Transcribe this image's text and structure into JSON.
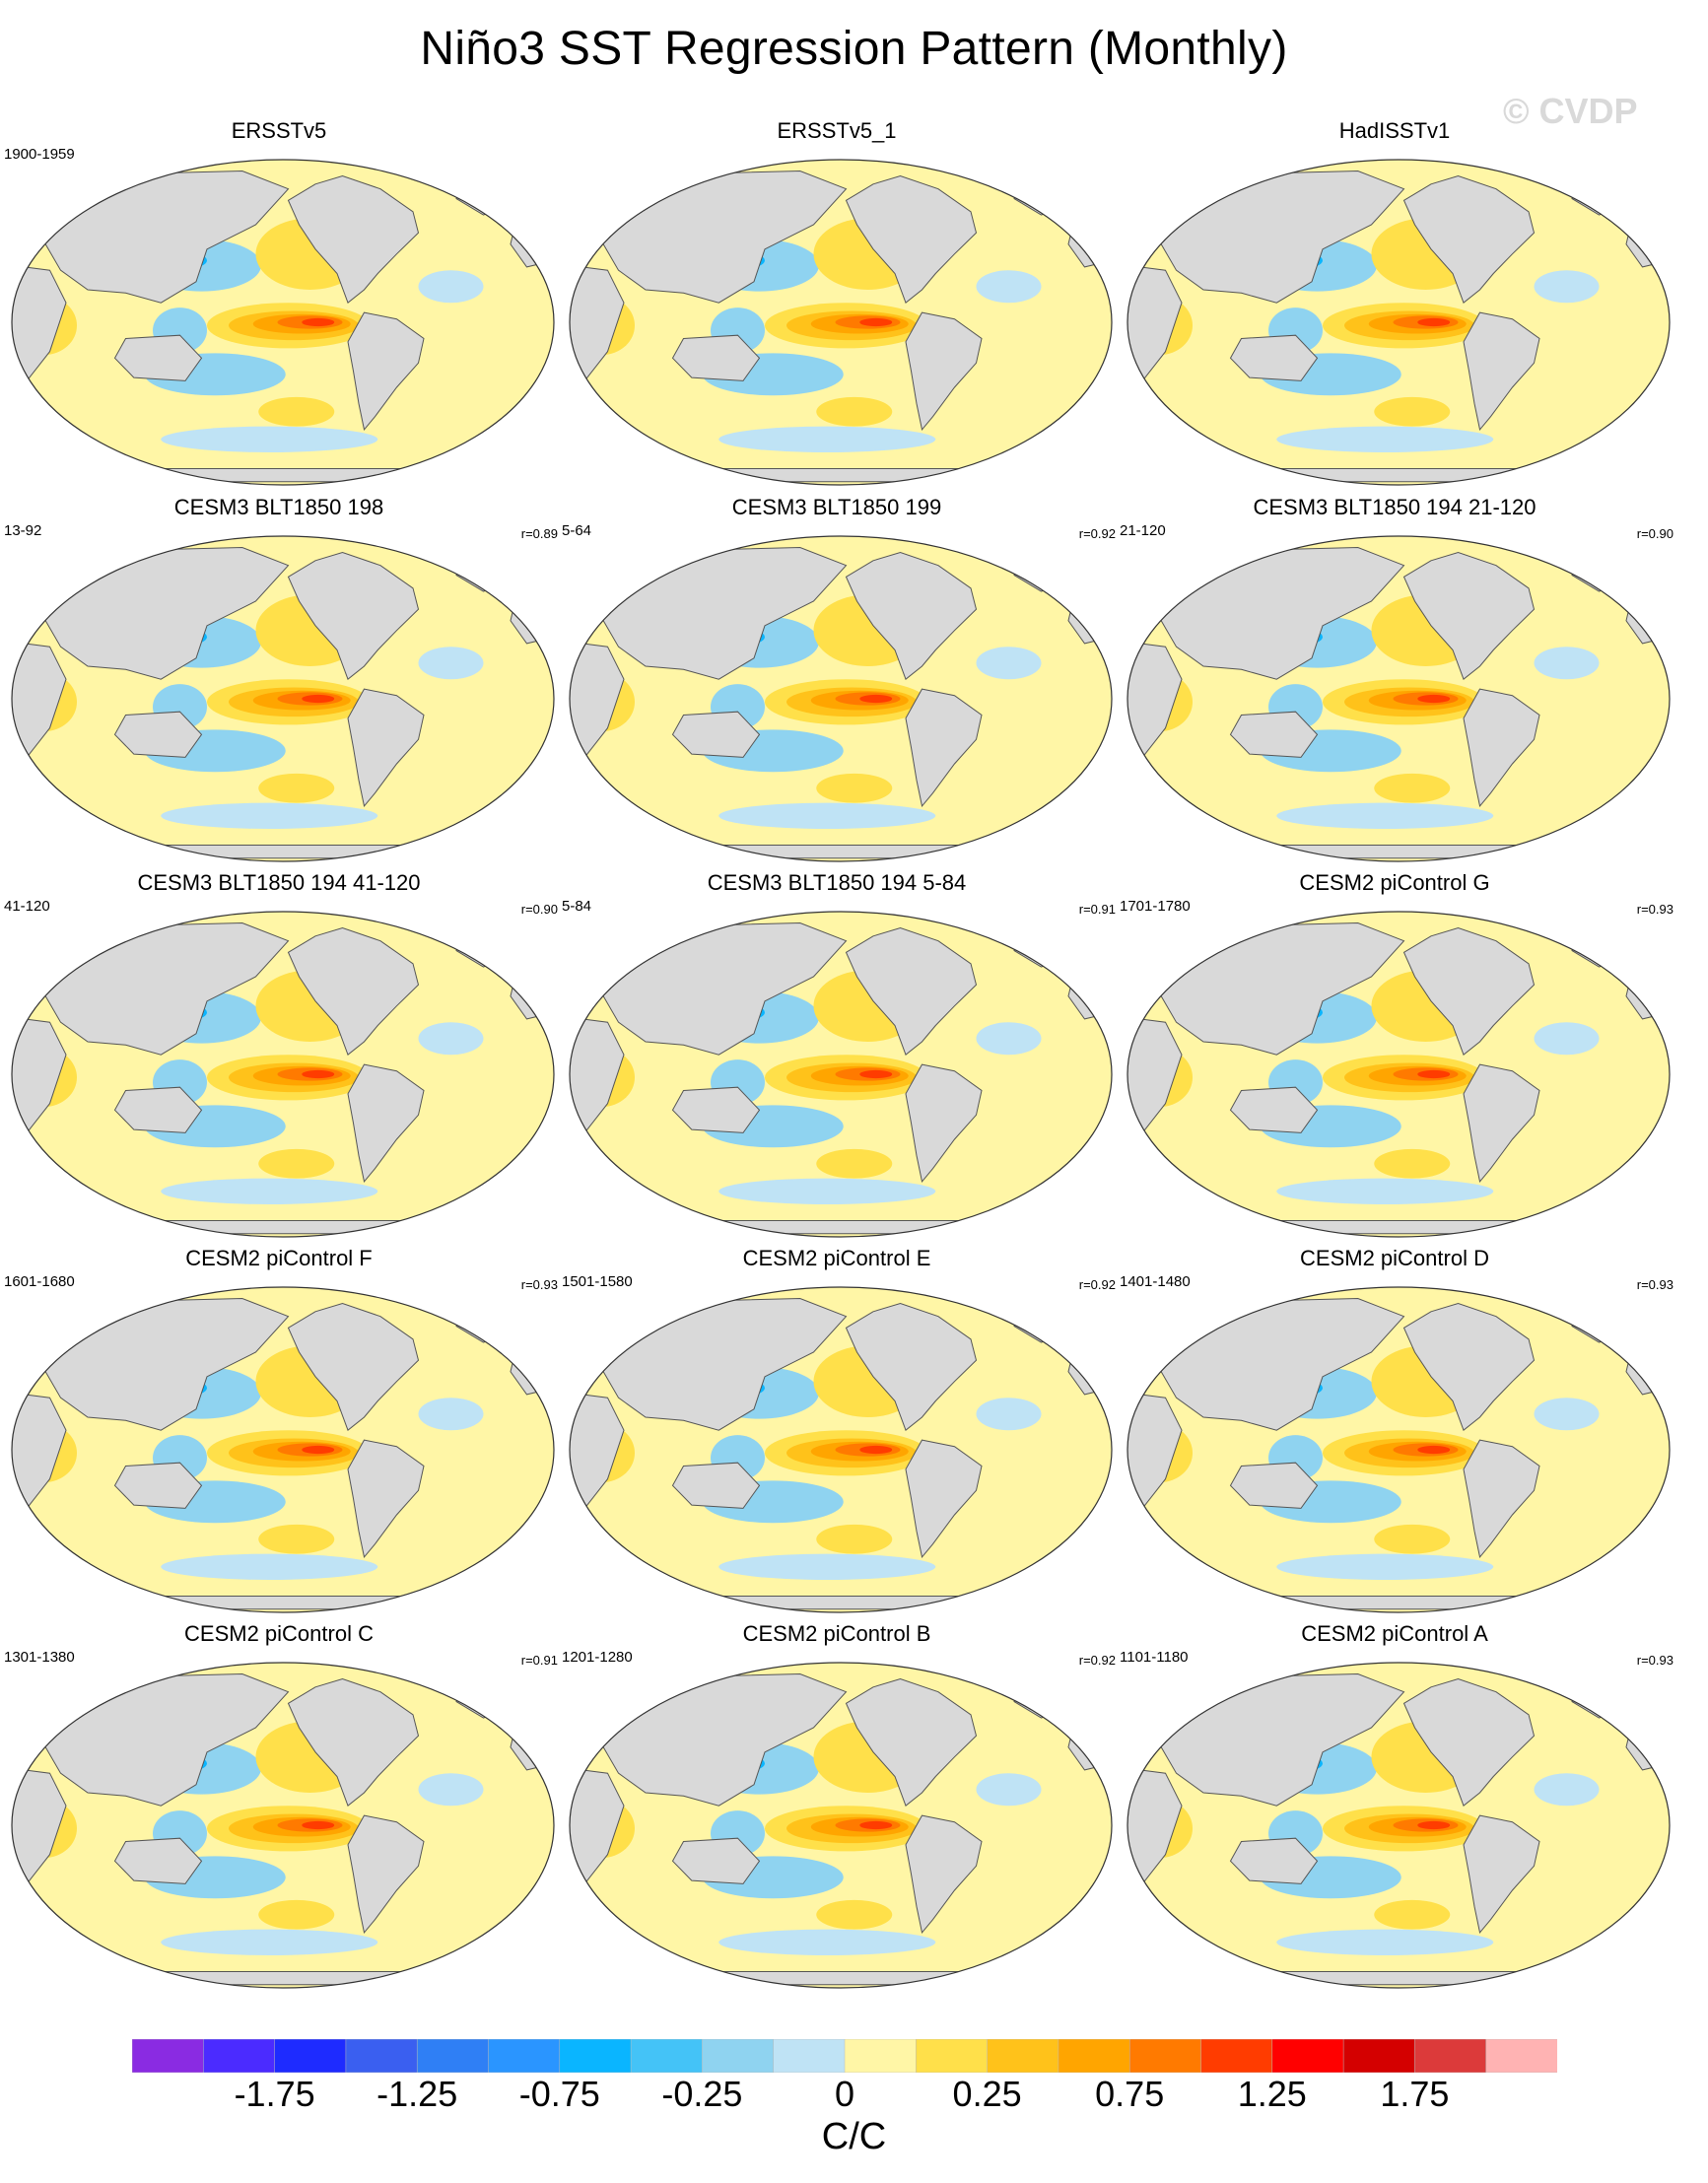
{
  "title": "Niño3 SST Regression Pattern (Monthly)",
  "watermark": "© CVDP",
  "colors": {
    "land": "#d9d9d9",
    "coast": "#555555",
    "background_ocean": "#fff6a6",
    "palette": [
      "#8a2be2",
      "#4b2bff",
      "#1e2bff",
      "#3a5ff0",
      "#2f7ff5",
      "#2a95ff",
      "#0ab5ff",
      "#44c3f7",
      "#8fd3f0",
      "#bfe3f5",
      "#fff6a6",
      "#ffe04a",
      "#ffc21a",
      "#ffa500",
      "#ff7a00",
      "#ff3c00",
      "#ff0000",
      "#d40000",
      "#dc3a3a",
      "#ffb3b3"
    ]
  },
  "colorbar": {
    "units": "C/C",
    "labels": [
      "-1.75",
      "-1.25",
      "-0.75",
      "-0.25",
      "0",
      "0.25",
      "0.75",
      "1.25",
      "1.75"
    ]
  },
  "panels": [
    {
      "title": "ERSSTv5",
      "period": "1900-1959",
      "r": ""
    },
    {
      "title": "ERSSTv5_1",
      "period": "",
      "r": ""
    },
    {
      "title": "HadISSTv1",
      "period": "",
      "r": ""
    },
    {
      "title": "CESM3 BLT1850 198",
      "period": "13-92",
      "r": "r=0.89"
    },
    {
      "title": "CESM3 BLT1850 199",
      "period": "5-64",
      "r": "r=0.92"
    },
    {
      "title": "CESM3 BLT1850 194 21-120",
      "period": "21-120",
      "r": "r=0.90"
    },
    {
      "title": "CESM3 BLT1850 194 41-120",
      "period": "41-120",
      "r": "r=0.90"
    },
    {
      "title": "CESM3 BLT1850 194 5-84",
      "period": "5-84",
      "r": "r=0.91"
    },
    {
      "title": "CESM2 piControl G",
      "period": "1701-1780",
      "r": "r=0.93"
    },
    {
      "title": "CESM2 piControl F",
      "period": "1601-1680",
      "r": "r=0.93"
    },
    {
      "title": "CESM2 piControl E",
      "period": "1501-1580",
      "r": "r=0.92"
    },
    {
      "title": "CESM2 piControl D",
      "period": "1401-1480",
      "r": "r=0.93"
    },
    {
      "title": "CESM2 piControl C",
      "period": "1301-1380",
      "r": "r=0.91"
    },
    {
      "title": "CESM2 piControl B",
      "period": "1201-1280",
      "r": "r=0.92"
    },
    {
      "title": "CESM2 piControl A",
      "period": "1101-1180",
      "r": "r=0.93"
    }
  ]
}
